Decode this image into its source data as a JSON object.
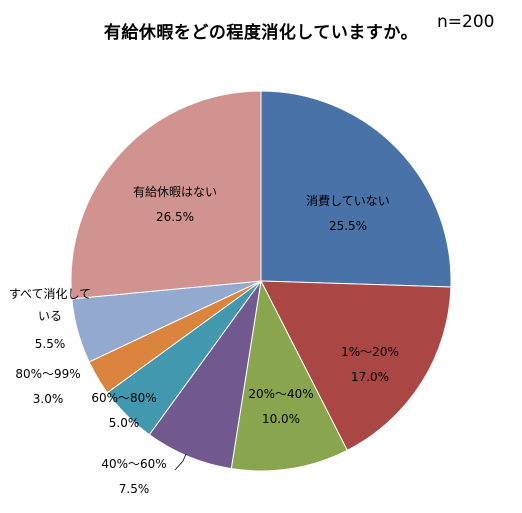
{
  "chart_data": {
    "type": "pie",
    "title": "有給休暇をどの程度消化していますか。",
    "sample_size": "n=200",
    "slices": [
      {
        "label": "消費していない",
        "value": 25.5,
        "value_text": "25.5%",
        "color": "#4872a8"
      },
      {
        "label": "1%～20%",
        "value": 17.0,
        "value_text": "17.0%",
        "color": "#aa4644"
      },
      {
        "label": "20%～40%",
        "value": 10.0,
        "value_text": "10.0%",
        "color": "#89a54e"
      },
      {
        "label": "40%～60%",
        "value": 7.5,
        "value_text": "7.5%",
        "color": "#71588f"
      },
      {
        "label": "60%～80%",
        "value": 5.0,
        "value_text": "5.0%",
        "color": "#4298af"
      },
      {
        "label": "80%～99%",
        "value": 3.0,
        "value_text": "3.0%",
        "color": "#db843d"
      },
      {
        "label": "すべて消化して\nいる",
        "value": 5.5,
        "value_text": "5.5%",
        "color": "#93a9cf"
      },
      {
        "label": "有給休暇はない",
        "value": 26.5,
        "value_text": "26.5%",
        "color": "#d1938f"
      }
    ]
  }
}
